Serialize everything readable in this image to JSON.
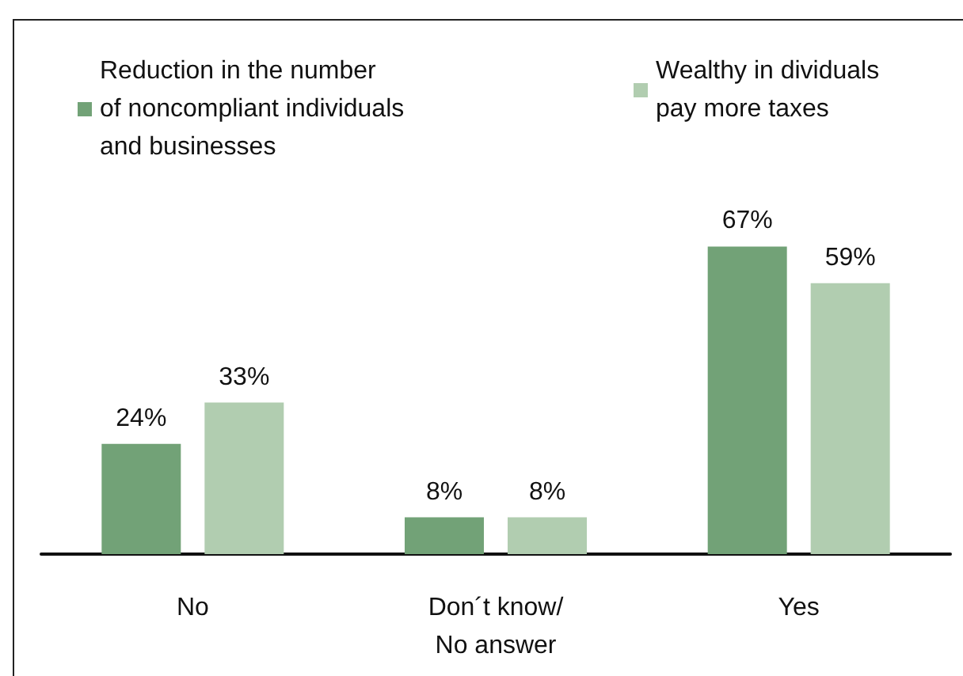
{
  "chart_data": {
    "type": "bar",
    "categories": [
      "No",
      "Don´t know/\nNo answer",
      "Yes"
    ],
    "series": [
      {
        "name": "Reduction in the number\nof noncompliant individuals\nand businesses",
        "color": "#72a277",
        "values": [
          24,
          8,
          67
        ],
        "value_labels": [
          "24%",
          "8%",
          "67%"
        ]
      },
      {
        "name": "Wealthy in dividuals\npay more taxes",
        "color": "#b1cdb0",
        "values": [
          33,
          8,
          59
        ],
        "value_labels": [
          "33%",
          "8%",
          "59%"
        ]
      }
    ],
    "legend": "top"
  }
}
